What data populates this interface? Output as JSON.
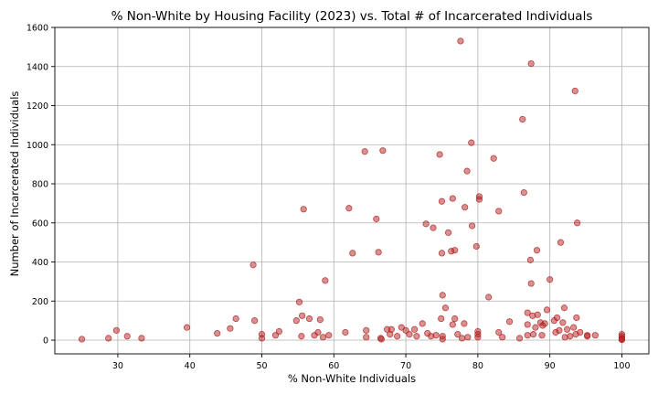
{
  "chart_data": {
    "type": "scatter",
    "title": "% Non-White by Housing Facility (2023) vs. Total # of Incarcerated Individuals",
    "xlabel": "% Non-White Individuals",
    "ylabel": "Number of Incarcerated Individuals",
    "xlim": [
      21.25,
      103.75
    ],
    "ylim": [
      -70,
      1600
    ],
    "xticks": [
      30,
      40,
      50,
      60,
      70,
      80,
      90,
      100
    ],
    "yticks": [
      0,
      200,
      400,
      600,
      800,
      1000,
      1200,
      1400,
      1600
    ],
    "grid": true,
    "marker_color": "#b22222",
    "points": [
      {
        "x": 25,
        "y": 5
      },
      {
        "x": 28.7,
        "y": 10
      },
      {
        "x": 29.8,
        "y": 50
      },
      {
        "x": 31.3,
        "y": 20
      },
      {
        "x": 33.3,
        "y": 10
      },
      {
        "x": 39.6,
        "y": 65
      },
      {
        "x": 43.8,
        "y": 35
      },
      {
        "x": 45.6,
        "y": 60
      },
      {
        "x": 46.4,
        "y": 110
      },
      {
        "x": 48.8,
        "y": 385
      },
      {
        "x": 49,
        "y": 100
      },
      {
        "x": 50,
        "y": 30
      },
      {
        "x": 50,
        "y": 10
      },
      {
        "x": 51.9,
        "y": 25
      },
      {
        "x": 52.4,
        "y": 45
      },
      {
        "x": 54.8,
        "y": 100
      },
      {
        "x": 55.2,
        "y": 195
      },
      {
        "x": 55.5,
        "y": 20
      },
      {
        "x": 55.6,
        "y": 125
      },
      {
        "x": 55.8,
        "y": 670
      },
      {
        "x": 56.6,
        "y": 110
      },
      {
        "x": 57.3,
        "y": 25
      },
      {
        "x": 57.8,
        "y": 40
      },
      {
        "x": 58.1,
        "y": 105
      },
      {
        "x": 58.5,
        "y": 15
      },
      {
        "x": 58.8,
        "y": 305
      },
      {
        "x": 59.3,
        "y": 25
      },
      {
        "x": 61.6,
        "y": 40
      },
      {
        "x": 62.1,
        "y": 675
      },
      {
        "x": 62.6,
        "y": 445
      },
      {
        "x": 64.3,
        "y": 965
      },
      {
        "x": 64.5,
        "y": 50
      },
      {
        "x": 64.5,
        "y": 15
      },
      {
        "x": 65.9,
        "y": 620
      },
      {
        "x": 66.2,
        "y": 450
      },
      {
        "x": 66.5,
        "y": 10
      },
      {
        "x": 66.6,
        "y": 5
      },
      {
        "x": 66.8,
        "y": 970
      },
      {
        "x": 67.4,
        "y": 55
      },
      {
        "x": 67.8,
        "y": 30
      },
      {
        "x": 68,
        "y": 55
      },
      {
        "x": 68.8,
        "y": 20
      },
      {
        "x": 69.4,
        "y": 65
      },
      {
        "x": 70,
        "y": 50
      },
      {
        "x": 70.5,
        "y": 30
      },
      {
        "x": 71.2,
        "y": 55
      },
      {
        "x": 71.5,
        "y": 20
      },
      {
        "x": 72.3,
        "y": 85
      },
      {
        "x": 72.8,
        "y": 595
      },
      {
        "x": 73,
        "y": 35
      },
      {
        "x": 73.5,
        "y": 20
      },
      {
        "x": 73.8,
        "y": 575
      },
      {
        "x": 74.2,
        "y": 25
      },
      {
        "x": 74.7,
        "y": 950
      },
      {
        "x": 74.9,
        "y": 110
      },
      {
        "x": 75,
        "y": 710
      },
      {
        "x": 75,
        "y": 445
      },
      {
        "x": 75.1,
        "y": 230
      },
      {
        "x": 75.1,
        "y": 20
      },
      {
        "x": 75.1,
        "y": 5
      },
      {
        "x": 75.5,
        "y": 165
      },
      {
        "x": 75.9,
        "y": 550
      },
      {
        "x": 76.3,
        "y": 455
      },
      {
        "x": 76.5,
        "y": 80
      },
      {
        "x": 76.5,
        "y": 725
      },
      {
        "x": 76.8,
        "y": 460
      },
      {
        "x": 76.8,
        "y": 110
      },
      {
        "x": 77.2,
        "y": 30
      },
      {
        "x": 77.6,
        "y": 1530
      },
      {
        "x": 77.8,
        "y": 10
      },
      {
        "x": 78.1,
        "y": 85
      },
      {
        "x": 78.2,
        "y": 680
      },
      {
        "x": 78.5,
        "y": 865
      },
      {
        "x": 78.6,
        "y": 15
      },
      {
        "x": 79.1,
        "y": 1010
      },
      {
        "x": 79.2,
        "y": 585
      },
      {
        "x": 79.8,
        "y": 480
      },
      {
        "x": 80,
        "y": 45
      },
      {
        "x": 80,
        "y": 30
      },
      {
        "x": 80,
        "y": 15
      },
      {
        "x": 80.2,
        "y": 720
      },
      {
        "x": 80.2,
        "y": 735
      },
      {
        "x": 81.5,
        "y": 220
      },
      {
        "x": 82.2,
        "y": 930
      },
      {
        "x": 82.9,
        "y": 660
      },
      {
        "x": 82.9,
        "y": 40
      },
      {
        "x": 83.4,
        "y": 15
      },
      {
        "x": 84.4,
        "y": 95
      },
      {
        "x": 85.8,
        "y": 10
      },
      {
        "x": 86.2,
        "y": 1130
      },
      {
        "x": 86.4,
        "y": 755
      },
      {
        "x": 86.9,
        "y": 25
      },
      {
        "x": 86.9,
        "y": 140
      },
      {
        "x": 86.9,
        "y": 80
      },
      {
        "x": 87.3,
        "y": 410
      },
      {
        "x": 87.4,
        "y": 1415
      },
      {
        "x": 87.4,
        "y": 290
      },
      {
        "x": 87.6,
        "y": 125
      },
      {
        "x": 87.7,
        "y": 30
      },
      {
        "x": 88,
        "y": 65
      },
      {
        "x": 88.2,
        "y": 460
      },
      {
        "x": 88.3,
        "y": 130
      },
      {
        "x": 88.7,
        "y": 90
      },
      {
        "x": 88.9,
        "y": 25
      },
      {
        "x": 89,
        "y": 75
      },
      {
        "x": 89.3,
        "y": 85
      },
      {
        "x": 89.6,
        "y": 155
      },
      {
        "x": 90,
        "y": 310
      },
      {
        "x": 90.6,
        "y": 100
      },
      {
        "x": 90.8,
        "y": 40
      },
      {
        "x": 91,
        "y": 115
      },
      {
        "x": 91.3,
        "y": 50
      },
      {
        "x": 91.5,
        "y": 500
      },
      {
        "x": 91.8,
        "y": 90
      },
      {
        "x": 92,
        "y": 165
      },
      {
        "x": 92.1,
        "y": 15
      },
      {
        "x": 92.4,
        "y": 55
      },
      {
        "x": 92.8,
        "y": 20
      },
      {
        "x": 93.3,
        "y": 65
      },
      {
        "x": 93.5,
        "y": 1275
      },
      {
        "x": 93.6,
        "y": 30
      },
      {
        "x": 93.7,
        "y": 115
      },
      {
        "x": 93.8,
        "y": 600
      },
      {
        "x": 94.2,
        "y": 40
      },
      {
        "x": 95.2,
        "y": 25
      },
      {
        "x": 95.2,
        "y": 20
      },
      {
        "x": 96.3,
        "y": 25
      },
      {
        "x": 100,
        "y": 30
      },
      {
        "x": 100,
        "y": 20
      },
      {
        "x": 100,
        "y": 10
      },
      {
        "x": 100,
        "y": 5
      },
      {
        "x": 100,
        "y": 2
      }
    ]
  }
}
